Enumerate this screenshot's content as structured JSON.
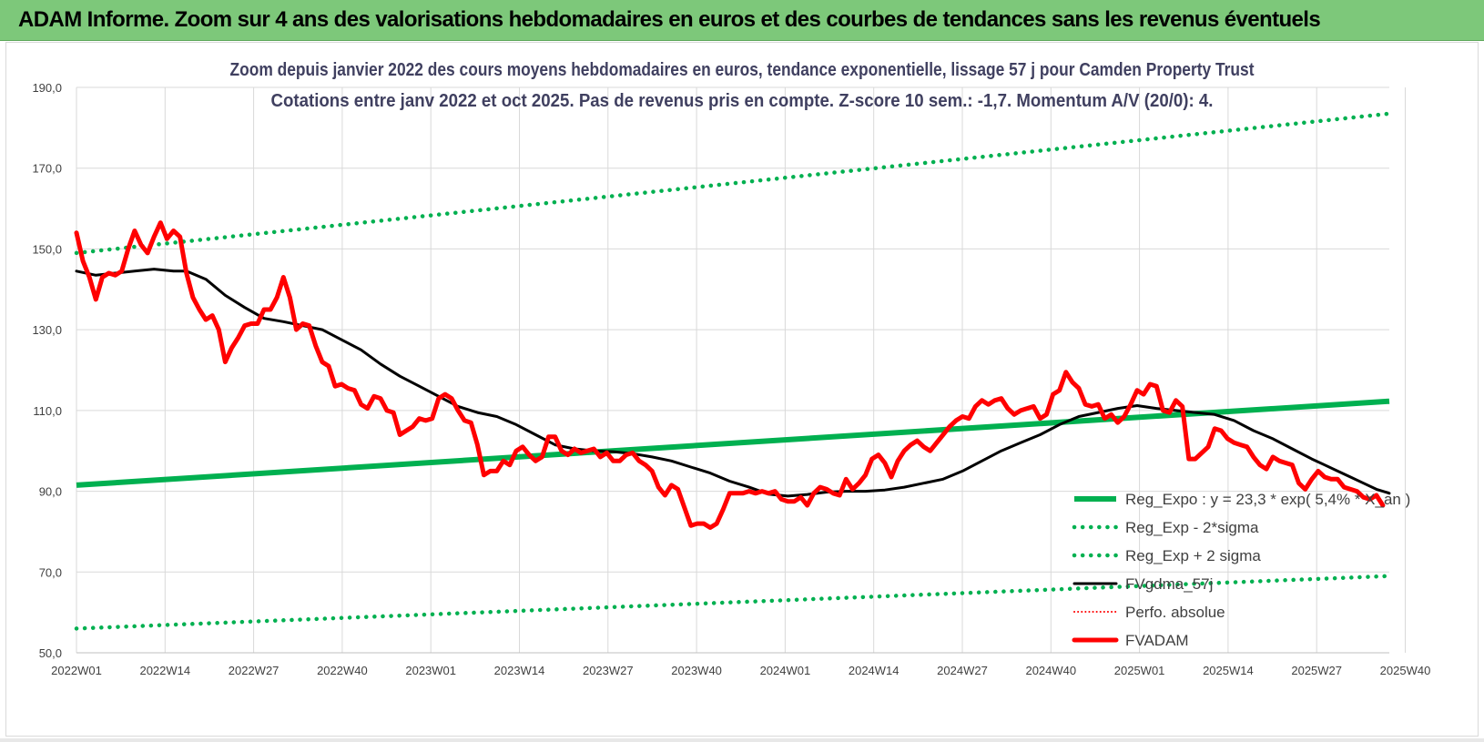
{
  "header": {
    "title": "ADAM Informe. Zoom sur 4 ans des valorisations hebdomadaires en euros et des courbes de tendances sans les revenus éventuels"
  },
  "chart_data": {
    "type": "line",
    "title": "Zoom depuis janvier 2022 des cours moyens hebdomadaires en euros, tendance exponentielle, lissage 57 j pour Camden Property Trust",
    "subtitle": "Cotations entre janv 2022 et oct 2025. Pas de revenus pris en compte. Z-score 10 sem.: -1,7.  Momentum A/V (20/0): 4.",
    "xlabel": "",
    "ylabel": "",
    "ylim": [
      50,
      190
    ],
    "yticks": [
      "190,0",
      "170,0",
      "150,0",
      "130,0",
      "110,0",
      "90,0",
      "70,0",
      "50,0"
    ],
    "x_tick_labels": [
      "2022W01",
      "2022W14",
      "2022W27",
      "2022W40",
      "2023W01",
      "2023W14",
      "2023W27",
      "2023W40",
      "2024W01",
      "2024W14",
      "2024W27",
      "2024W40",
      "2025W01",
      "2025W14",
      "2025W27",
      "2025W40"
    ],
    "n_weeks": 196,
    "grid": true,
    "legend_position": "bottom-right",
    "series": [
      {
        "name": "Reg_Expo : y = 23,3 * exp( 5,4% * X_an )",
        "style": "solid",
        "color": "#00b050",
        "points": [
          [
            0,
            91.5
          ],
          [
            195,
            112.3
          ]
        ]
      },
      {
        "name": "Reg_Exp - 2*sigma",
        "style": "dotted",
        "color": "#00b050",
        "points": [
          [
            0,
            56.0
          ],
          [
            195,
            69.0
          ]
        ]
      },
      {
        "name": "Reg_Exp + 2 sigma",
        "style": "dotted",
        "color": "#00b050",
        "points": [
          [
            0,
            149.0
          ],
          [
            195,
            183.5
          ]
        ]
      },
      {
        "name": "FVgdma_57j",
        "style": "solid",
        "color": "#000000",
        "points": [
          [
            0,
            144.5
          ],
          [
            3,
            143.5
          ],
          [
            6,
            144.0
          ],
          [
            9,
            144.5
          ],
          [
            12,
            145.0
          ],
          [
            15,
            144.5
          ],
          [
            17,
            144.5
          ],
          [
            20,
            142.5
          ],
          [
            23,
            138.5
          ],
          [
            26,
            135.5
          ],
          [
            29,
            132.8
          ],
          [
            32,
            132.0
          ],
          [
            35,
            131.0
          ],
          [
            38,
            130.0
          ],
          [
            41,
            127.5
          ],
          [
            44,
            125.0
          ],
          [
            47,
            121.5
          ],
          [
            50,
            118.5
          ],
          [
            53,
            116.0
          ],
          [
            56,
            113.5
          ],
          [
            59,
            111.0
          ],
          [
            62,
            109.5
          ],
          [
            65,
            108.5
          ],
          [
            68,
            106.5
          ],
          [
            71,
            104.0
          ],
          [
            74,
            101.5
          ],
          [
            77,
            100.5
          ],
          [
            80,
            100.0
          ],
          [
            83,
            99.8
          ],
          [
            86,
            99.3
          ],
          [
            89,
            98.5
          ],
          [
            92,
            97.5
          ],
          [
            95,
            96.0
          ],
          [
            98,
            94.5
          ],
          [
            101,
            92.5
          ],
          [
            104,
            91.0
          ],
          [
            107,
            89.3
          ],
          [
            110,
            88.8
          ],
          [
            113,
            89.2
          ],
          [
            116,
            89.8
          ],
          [
            119,
            90.0
          ],
          [
            122,
            90.0
          ],
          [
            125,
            90.3
          ],
          [
            128,
            91.0
          ],
          [
            131,
            92.0
          ],
          [
            134,
            93.0
          ],
          [
            137,
            95.0
          ],
          [
            140,
            97.5
          ],
          [
            143,
            100.0
          ],
          [
            146,
            102.0
          ],
          [
            149,
            104.0
          ],
          [
            152,
            106.5
          ],
          [
            155,
            108.5
          ],
          [
            158,
            109.5
          ],
          [
            161,
            110.5
          ],
          [
            164,
            111.2
          ],
          [
            167,
            110.5
          ],
          [
            170,
            110.0
          ],
          [
            173,
            109.5
          ],
          [
            176,
            109.0
          ],
          [
            179,
            107.5
          ],
          [
            182,
            105.0
          ],
          [
            185,
            103.0
          ],
          [
            188,
            100.5
          ],
          [
            191,
            98.0
          ],
          [
            193,
            96.5
          ],
          [
            195,
            95.0
          ],
          [
            197,
            93.5
          ],
          [
            199,
            92.0
          ],
          [
            201,
            90.5
          ],
          [
            203,
            89.5
          ]
        ]
      },
      {
        "name": "Perfo. absolue",
        "style": "dotted-thin",
        "color": "#ff0000",
        "points": []
      },
      {
        "name": "FVADAM",
        "style": "solid",
        "color": "#ff0000",
        "points": [
          [
            0,
            154.0
          ],
          [
            1,
            147.0
          ],
          [
            2,
            143.0
          ],
          [
            3,
            137.5
          ],
          [
            4,
            143.0
          ],
          [
            5,
            144.0
          ],
          [
            6,
            143.5
          ],
          [
            7,
            144.5
          ],
          [
            8,
            150.0
          ],
          [
            9,
            154.5
          ],
          [
            10,
            151.0
          ],
          [
            11,
            149.0
          ],
          [
            12,
            153.0
          ],
          [
            13,
            156.5
          ],
          [
            14,
            152.5
          ],
          [
            15,
            154.5
          ],
          [
            16,
            153.0
          ],
          [
            17,
            144.0
          ],
          [
            18,
            138.0
          ],
          [
            19,
            135.0
          ],
          [
            20,
            132.5
          ],
          [
            21,
            133.5
          ],
          [
            22,
            130.0
          ],
          [
            23,
            122.0
          ],
          [
            24,
            125.5
          ],
          [
            25,
            128.0
          ],
          [
            26,
            131.0
          ],
          [
            27,
            131.5
          ],
          [
            28,
            131.5
          ],
          [
            29,
            135.0
          ],
          [
            30,
            135.0
          ],
          [
            31,
            138.0
          ],
          [
            32,
            143.0
          ],
          [
            33,
            138.0
          ],
          [
            34,
            130.0
          ],
          [
            35,
            131.5
          ],
          [
            36,
            131.0
          ],
          [
            37,
            126.0
          ],
          [
            38,
            122.0
          ],
          [
            39,
            121.0
          ],
          [
            40,
            116.0
          ],
          [
            41,
            116.5
          ],
          [
            42,
            115.5
          ],
          [
            43,
            115.0
          ],
          [
            44,
            111.5
          ],
          [
            45,
            110.5
          ],
          [
            46,
            113.5
          ],
          [
            47,
            113.0
          ],
          [
            48,
            110.0
          ],
          [
            49,
            109.5
          ],
          [
            50,
            104.0
          ],
          [
            51,
            105.0
          ],
          [
            52,
            106.0
          ],
          [
            53,
            108.0
          ],
          [
            54,
            107.5
          ],
          [
            55,
            108.0
          ],
          [
            56,
            113.0
          ],
          [
            57,
            114.0
          ],
          [
            58,
            113.0
          ],
          [
            59,
            110.0
          ],
          [
            60,
            107.5
          ],
          [
            61,
            107.0
          ],
          [
            62,
            101.5
          ],
          [
            63,
            94.0
          ],
          [
            64,
            95.0
          ],
          [
            65,
            95.0
          ],
          [
            66,
            97.5
          ],
          [
            67,
            96.5
          ],
          [
            68,
            100.0
          ],
          [
            69,
            101.0
          ],
          [
            70,
            99.0
          ],
          [
            71,
            97.5
          ],
          [
            72,
            98.5
          ],
          [
            73,
            103.5
          ],
          [
            74,
            103.5
          ],
          [
            75,
            100.0
          ],
          [
            76,
            99.0
          ],
          [
            77,
            100.5
          ],
          [
            78,
            99.5
          ],
          [
            79,
            100.0
          ],
          [
            80,
            100.5
          ],
          [
            81,
            98.5
          ],
          [
            82,
            99.5
          ],
          [
            83,
            97.5
          ],
          [
            84,
            97.5
          ],
          [
            85,
            99.0
          ],
          [
            86,
            99.5
          ],
          [
            87,
            97.5
          ],
          [
            88,
            96.5
          ],
          [
            89,
            95.0
          ],
          [
            90,
            91.0
          ],
          [
            91,
            89.0
          ],
          [
            92,
            91.5
          ],
          [
            93,
            90.5
          ],
          [
            94,
            86.0
          ],
          [
            95,
            81.5
          ],
          [
            96,
            82.0
          ],
          [
            97,
            82.0
          ],
          [
            98,
            81.0
          ],
          [
            99,
            82.0
          ],
          [
            100,
            85.5
          ],
          [
            101,
            89.5
          ],
          [
            102,
            89.5
          ],
          [
            103,
            89.5
          ],
          [
            104,
            90.0
          ],
          [
            105,
            89.5
          ],
          [
            106,
            90.0
          ],
          [
            107,
            89.5
          ],
          [
            108,
            90.0
          ],
          [
            109,
            88.0
          ],
          [
            110,
            87.5
          ],
          [
            111,
            87.5
          ],
          [
            112,
            88.5
          ],
          [
            113,
            86.5
          ],
          [
            114,
            89.5
          ],
          [
            115,
            91.0
          ],
          [
            116,
            90.5
          ],
          [
            117,
            89.5
          ],
          [
            118,
            89.0
          ],
          [
            119,
            93.0
          ],
          [
            120,
            90.5
          ],
          [
            121,
            92.0
          ],
          [
            122,
            94.0
          ],
          [
            123,
            98.0
          ],
          [
            124,
            99.0
          ],
          [
            125,
            97.0
          ],
          [
            126,
            93.5
          ],
          [
            127,
            97.5
          ],
          [
            128,
            100.0
          ],
          [
            129,
            101.5
          ],
          [
            130,
            102.5
          ],
          [
            131,
            101.0
          ],
          [
            132,
            100.0
          ],
          [
            133,
            102.0
          ],
          [
            134,
            104.0
          ],
          [
            135,
            106.0
          ],
          [
            136,
            107.5
          ],
          [
            137,
            108.5
          ],
          [
            138,
            108.0
          ],
          [
            139,
            111.0
          ],
          [
            140,
            112.5
          ],
          [
            141,
            111.5
          ],
          [
            142,
            112.5
          ],
          [
            143,
            113.0
          ],
          [
            144,
            110.5
          ],
          [
            145,
            109.0
          ],
          [
            146,
            110.0
          ],
          [
            147,
            110.5
          ],
          [
            148,
            111.0
          ],
          [
            149,
            108.0
          ],
          [
            150,
            109.0
          ],
          [
            151,
            114.0
          ],
          [
            152,
            115.0
          ],
          [
            153,
            119.5
          ],
          [
            154,
            117.0
          ],
          [
            155,
            115.5
          ],
          [
            156,
            111.5
          ],
          [
            157,
            111.0
          ],
          [
            158,
            111.5
          ],
          [
            159,
            108.0
          ],
          [
            160,
            109.0
          ],
          [
            161,
            107.0
          ],
          [
            162,
            108.5
          ],
          [
            163,
            111.5
          ],
          [
            164,
            115.0
          ],
          [
            165,
            114.0
          ],
          [
            166,
            116.5
          ],
          [
            167,
            116.0
          ],
          [
            168,
            110.0
          ],
          [
            169,
            109.5
          ],
          [
            170,
            112.5
          ],
          [
            171,
            111.0
          ],
          [
            172,
            98.0
          ],
          [
            173,
            98.0
          ],
          [
            174,
            99.5
          ],
          [
            175,
            101.0
          ],
          [
            176,
            105.5
          ],
          [
            177,
            105.0
          ],
          [
            178,
            103.0
          ],
          [
            179,
            102.0
          ],
          [
            180,
            101.5
          ],
          [
            181,
            101.0
          ],
          [
            182,
            98.5
          ],
          [
            183,
            96.5
          ],
          [
            184,
            95.5
          ],
          [
            185,
            98.5
          ],
          [
            186,
            97.5
          ],
          [
            187,
            97.0
          ],
          [
            188,
            96.5
          ],
          [
            189,
            92.0
          ],
          [
            190,
            90.5
          ],
          [
            191,
            93.0
          ],
          [
            192,
            95.0
          ],
          [
            193,
            93.5
          ],
          [
            194,
            93.0
          ],
          [
            195,
            93.0
          ],
          [
            196,
            91.0
          ],
          [
            197,
            90.5
          ],
          [
            198,
            90.0
          ],
          [
            199,
            88.5
          ],
          [
            200,
            88.0
          ],
          [
            201,
            89.0
          ],
          [
            202,
            86.5
          ]
        ]
      }
    ]
  }
}
